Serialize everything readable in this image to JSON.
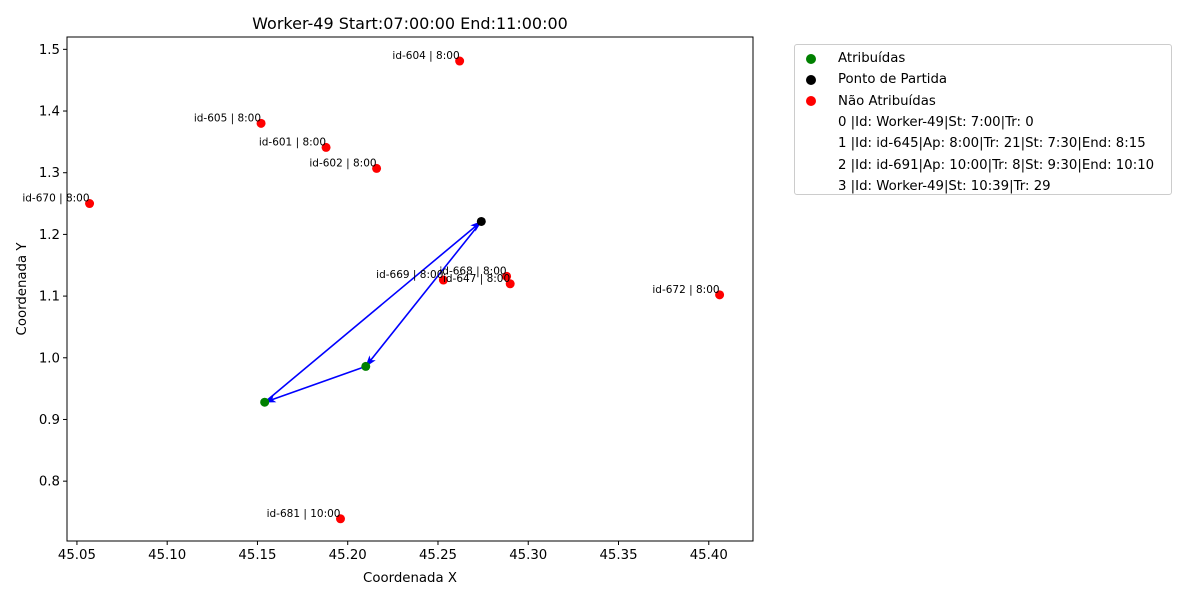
{
  "chart_data": {
    "type": "scatter",
    "title": "Worker-49 Start:07:00:00 End:11:00:00",
    "xlabel": "Coordenada X",
    "ylabel": "Coordenada Y",
    "xlim": [
      45.0445,
      45.4245
    ],
    "ylim": [
      0.703,
      1.52
    ],
    "xticks": [
      "45.05",
      "45.10",
      "45.15",
      "45.20",
      "45.25",
      "45.30",
      "45.35",
      "45.40"
    ],
    "yticks": [
      "0.8",
      "0.9",
      "1.0",
      "1.1",
      "1.2",
      "1.3",
      "1.4",
      "1.5"
    ],
    "grid": false,
    "legend_position": "outside-right",
    "series": [
      {
        "name": "Atribuídas",
        "color": "#008000",
        "points": [
          {
            "x": 45.21,
            "y": 0.986
          },
          {
            "x": 45.154,
            "y": 0.928
          }
        ]
      },
      {
        "name": "Ponto de Partida",
        "color": "#000000",
        "points": [
          {
            "x": 45.274,
            "y": 1.221
          }
        ]
      },
      {
        "name": "Não Atribuídas",
        "color": "#ff0000",
        "points": [
          {
            "x": 45.262,
            "y": 1.481,
            "label": "id-604 | 8:00"
          },
          {
            "x": 45.152,
            "y": 1.38,
            "label": "id-605 | 8:00"
          },
          {
            "x": 45.188,
            "y": 1.341,
            "label": "id-601 | 8:00"
          },
          {
            "x": 45.216,
            "y": 1.307,
            "label": "id-602 | 8:00"
          },
          {
            "x": 45.057,
            "y": 1.25,
            "label": "id-670 | 8:00"
          },
          {
            "x": 45.253,
            "y": 1.126,
            "label": "id-669 | 8:00"
          },
          {
            "x": 45.288,
            "y": 1.132,
            "label": "id-668 | 8:00"
          },
          {
            "x": 45.29,
            "y": 1.12,
            "label": "id-647 | 8:00"
          },
          {
            "x": 45.406,
            "y": 1.102,
            "label": "id-672 | 8:00"
          },
          {
            "x": 45.196,
            "y": 0.739,
            "label": "id-681 | 10:00"
          }
        ]
      }
    ],
    "route": {
      "color": "#0000ff",
      "path": [
        {
          "x": 45.274,
          "y": 1.221
        },
        {
          "x": 45.21,
          "y": 0.986
        },
        {
          "x": 45.154,
          "y": 0.928
        },
        {
          "x": 45.274,
          "y": 1.221
        }
      ]
    },
    "legend_entries": [
      {
        "label": "Atribuídas",
        "marker_color": "#008000"
      },
      {
        "label": "Ponto de Partida",
        "marker_color": "#000000"
      },
      {
        "label": "Não Atribuídas",
        "marker_color": "#ff0000"
      },
      {
        "label": "0 |Id: Worker-49|St: 7:00|Tr: 0",
        "marker_color": ""
      },
      {
        "label": "1 |Id: id-645|Ap: 8:00|Tr: 21|St: 7:30|End: 8:15",
        "marker_color": ""
      },
      {
        "label": "2 |Id: id-691|Ap: 10:00|Tr: 8|St: 9:30|End: 10:10",
        "marker_color": ""
      },
      {
        "label": "3 |Id: Worker-49|St: 10:39|Tr: 29",
        "marker_color": ""
      }
    ]
  }
}
